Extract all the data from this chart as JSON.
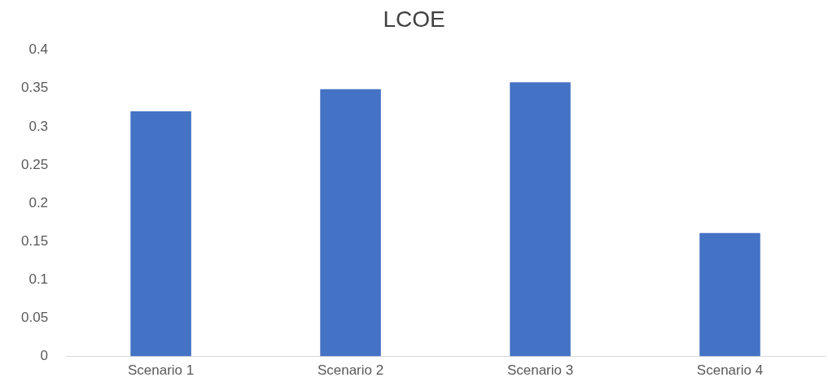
{
  "chart_data": {
    "type": "bar",
    "title": "LCOE",
    "categories": [
      "Scenario 1",
      "Scenario 2",
      "Scenario 3",
      "Scenario 4"
    ],
    "values": [
      0.32,
      0.349,
      0.358,
      0.161
    ],
    "color": "#4472c4",
    "ylim": [
      0,
      0.4
    ],
    "yticks": [
      0,
      0.05,
      0.1,
      0.15,
      0.2,
      0.25,
      0.3,
      0.35,
      0.4
    ],
    "grid": false,
    "legend": false
  }
}
